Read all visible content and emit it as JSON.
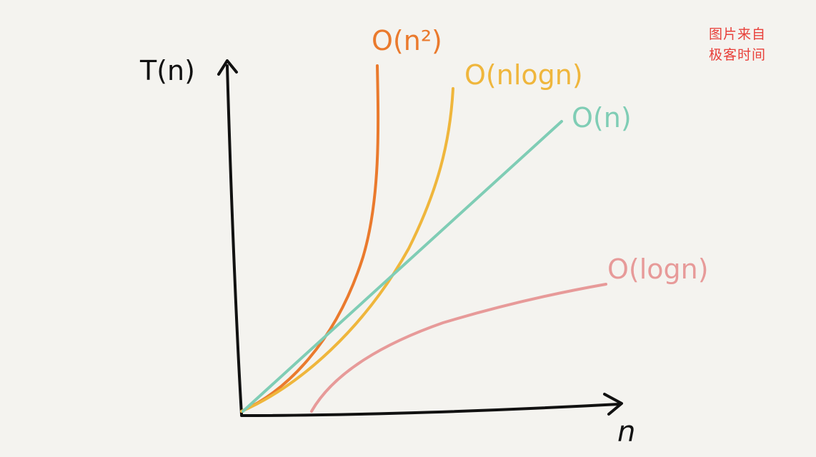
{
  "watermark": {
    "line1": "图片来自",
    "line2": "极客时间"
  },
  "chart_data": {
    "type": "line",
    "xlabel": "n",
    "ylabel": "T(n)",
    "grid": false,
    "legend": "none",
    "series": [
      {
        "name": "O(n²)",
        "color": "#ea7a2d"
      },
      {
        "name": "O(nlogn)",
        "color": "#efb63c"
      },
      {
        "name": "O(n)",
        "color": "#7fcdb5"
      },
      {
        "name": "O(logn)",
        "color": "#e79a99"
      }
    ]
  }
}
